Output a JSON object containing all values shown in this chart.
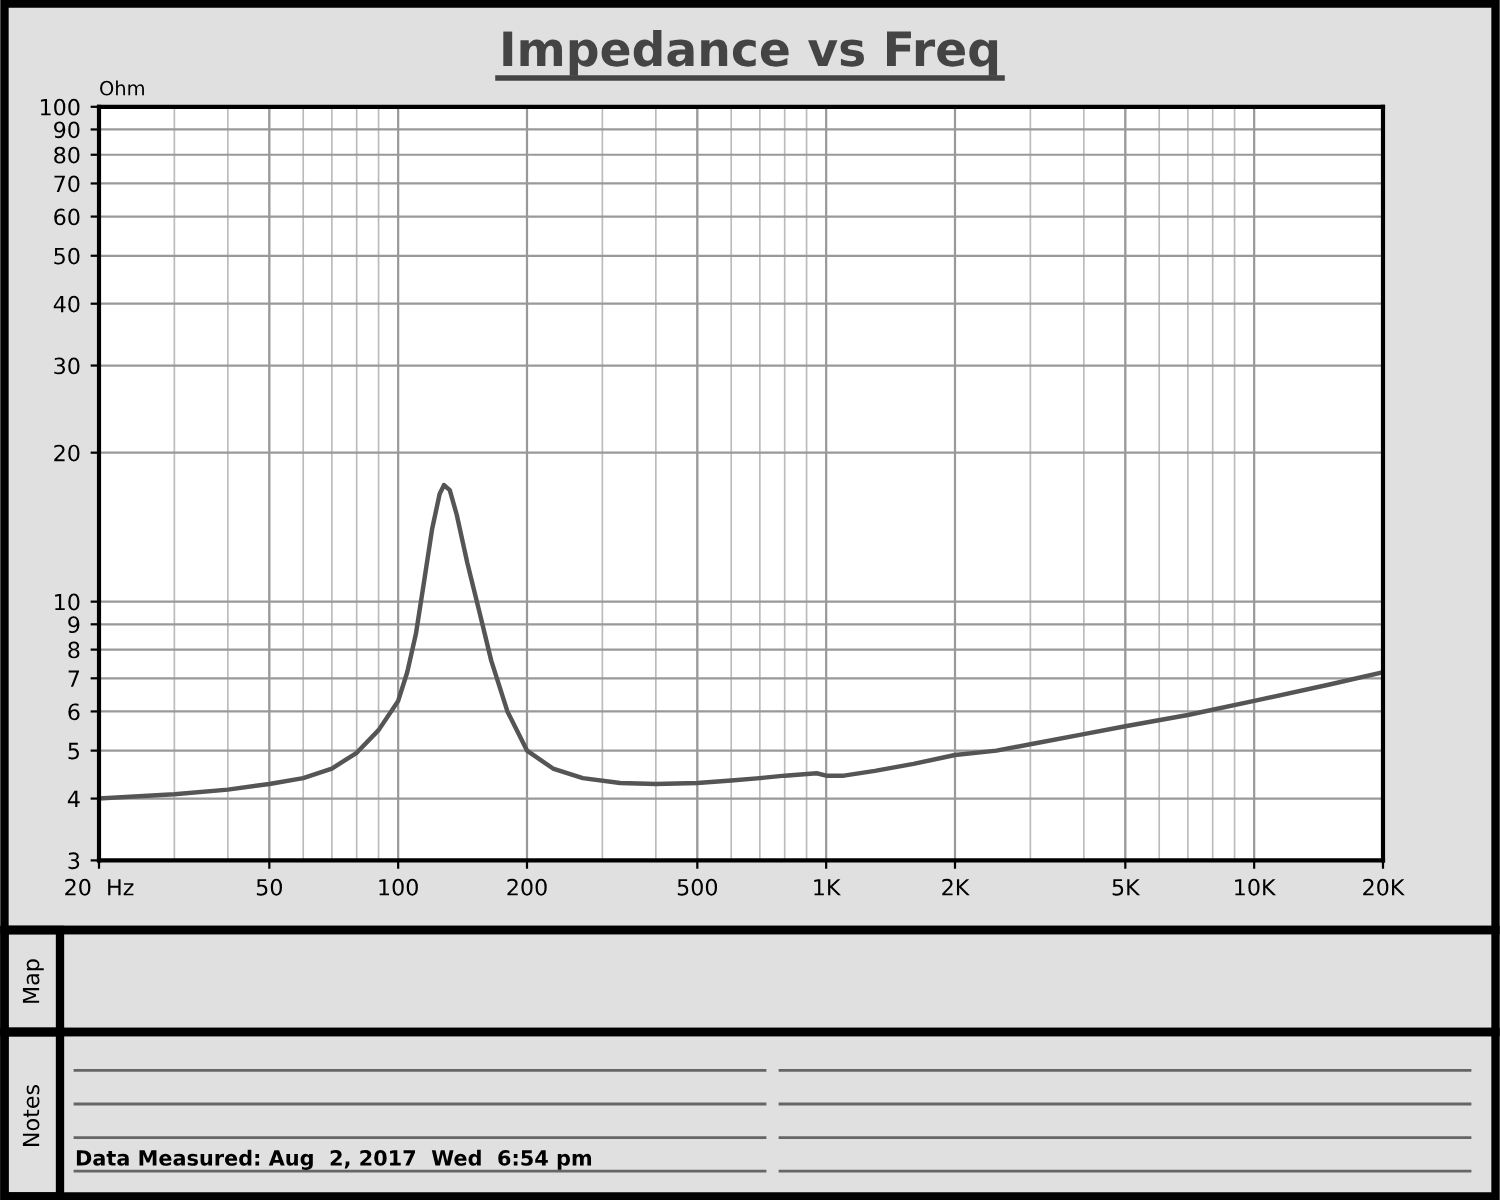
{
  "chart_data": {
    "type": "line",
    "title": "Impedance vs Freq",
    "ylabel": "Ohm",
    "annotations": [
      "Map",
      "Notes",
      "Data Measured: Aug  2, 2017  Wed  6:54 pm"
    ],
    "log": "xy",
    "grid": true,
    "legend": false,
    "xlim": [
      20,
      20000
    ],
    "ylim": [
      3,
      100
    ],
    "xticks": [
      {
        "value": 20,
        "label": "20  Hz"
      },
      50,
      100,
      200,
      500,
      {
        "value": 1000,
        "label": "1K"
      },
      {
        "value": 2000,
        "label": "2K"
      },
      {
        "value": 5000,
        "label": "5K"
      },
      {
        "value": 10000,
        "label": "10K"
      },
      {
        "value": 20000,
        "label": "20K"
      }
    ],
    "yticks": [
      3,
      4,
      5,
      6,
      7,
      8,
      9,
      10,
      20,
      30,
      40,
      50,
      60,
      70,
      80,
      90,
      100
    ],
    "series": [
      {
        "color": "#555555",
        "x": [
          20,
          30,
          40,
          50,
          60,
          70,
          80,
          90,
          100,
          105,
          110,
          115,
          120,
          125,
          128,
          132,
          137,
          145,
          155,
          165,
          180,
          200,
          230,
          270,
          330,
          400,
          500,
          600,
          700,
          800,
          950,
          1000,
          1100,
          1300,
          1600,
          2000,
          2500,
          3000,
          4000,
          5000,
          7000,
          10000,
          15000,
          20000
        ],
        "values": [
          4.0,
          4.08,
          4.17,
          4.28,
          4.4,
          4.6,
          4.95,
          5.5,
          6.3,
          7.2,
          8.6,
          11,
          14,
          16.5,
          17.2,
          16.8,
          15,
          12,
          9.5,
          7.6,
          6.0,
          5.0,
          4.6,
          4.4,
          4.3,
          4.28,
          4.3,
          4.35,
          4.4,
          4.45,
          4.5,
          4.45,
          4.45,
          4.55,
          4.7,
          4.9,
          5.0,
          5.15,
          5.4,
          5.6,
          5.9,
          6.3,
          6.8,
          7.2
        ]
      }
    ]
  }
}
